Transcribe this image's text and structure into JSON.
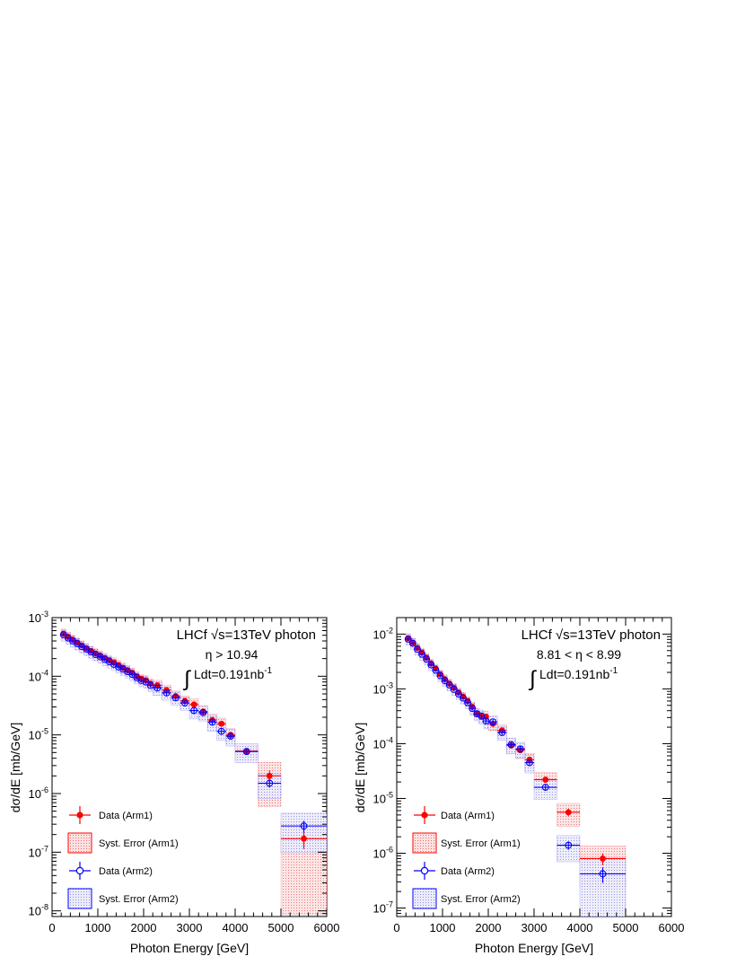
{
  "colors": {
    "arm1": "#ff0000",
    "arm2": "#0000ff",
    "arm1_fill": "#f7b0b0",
    "arm2_fill": "#c4c4f2"
  },
  "chart_data": [
    {
      "type": "scatter",
      "title_prefix": "LHCf ",
      "title_sqrt": "√",
      "title_suffix": "s=13TeV photon",
      "eta_text": "η > 10.94",
      "lumi_text": "Ldt=0.191nb",
      "lumi_sup": "-1",
      "xlabel": "Photon Energy [GeV]",
      "ylabel": "dσ/dE [mb/GeV]",
      "xlim": [
        0,
        6000
      ],
      "ylim": [
        8e-09,
        0.001
      ],
      "log_y": true,
      "x_ticks": [
        0,
        1000,
        2000,
        3000,
        4000,
        5000,
        6000
      ],
      "y_ticks": [
        {
          "v": 1e-08,
          "e": "-8"
        },
        {
          "v": 1e-07,
          "e": "-7"
        },
        {
          "v": 1e-06,
          "e": "-6"
        },
        {
          "v": 1e-05,
          "e": "-5"
        },
        {
          "v": 0.0001,
          "e": "-4"
        },
        {
          "v": 0.001,
          "e": "-3"
        }
      ],
      "legend": [
        "Data (Arm1)",
        "Syst. Error (Arm1)",
        "Data (Arm2)",
        "Syst. Error (Arm2)"
      ],
      "series": [
        {
          "name": "Data (Arm1)",
          "points": [
            [
              200,
              300,
              0.00053,
              0.2
            ],
            [
              300,
              400,
              0.00047,
              0.2
            ],
            [
              400,
              500,
              0.00042,
              0.2
            ],
            [
              500,
              600,
              0.000375,
              0.2
            ],
            [
              600,
              700,
              0.000335,
              0.2
            ],
            [
              700,
              800,
              0.0003,
              0.2
            ],
            [
              800,
              900,
              0.00027,
              0.2
            ],
            [
              900,
              1000,
              0.000245,
              0.2
            ],
            [
              1000,
              1100,
              0.000225,
              0.2
            ],
            [
              1100,
              1200,
              0.000205,
              0.2
            ],
            [
              1200,
              1300,
              0.000188,
              0.2
            ],
            [
              1300,
              1400,
              0.000172,
              0.2
            ],
            [
              1400,
              1500,
              0.000155,
              0.2
            ],
            [
              1500,
              1600,
              0.00014,
              0.2
            ],
            [
              1600,
              1700,
              0.000127,
              0.2
            ],
            [
              1700,
              1800,
              0.000115,
              0.2
            ],
            [
              1800,
              1900,
              0.0001,
              0.2
            ],
            [
              1900,
              2000,
              9e-05,
              0.2
            ],
            [
              2000,
              2100,
              8.5e-05,
              0.2
            ],
            [
              2100,
              2200,
              7.5e-05,
              0.2
            ],
            [
              2200,
              2400,
              7e-05,
              0.22
            ],
            [
              2400,
              2600,
              5.8e-05,
              0.22
            ],
            [
              2600,
              2800,
              4.6e-05,
              0.22
            ],
            [
              2800,
              3000,
              3.8e-05,
              0.22
            ],
            [
              3000,
              3200,
              3.3e-05,
              0.25
            ],
            [
              3200,
              3400,
              2.5e-05,
              0.25
            ],
            [
              3400,
              3600,
              1.8e-05,
              0.25
            ],
            [
              3600,
              3800,
              1.55e-05,
              0.25
            ],
            [
              3800,
              4000,
              1e-05,
              0.28
            ],
            [
              4000,
              4500,
              5.3e-06,
              0.3
            ],
            [
              4500,
              5000,
              2e-06,
              0.7
            ],
            [
              5000,
              6000,
              1.7e-07,
              0.95
            ]
          ]
        },
        {
          "name": "Data (Arm2)",
          "points": [
            [
              200,
              300,
              0.00051,
              0.22
            ],
            [
              300,
              400,
              0.00045,
              0.22
            ],
            [
              400,
              500,
              0.0004,
              0.22
            ],
            [
              500,
              600,
              0.00036,
              0.22
            ],
            [
              600,
              700,
              0.00032,
              0.22
            ],
            [
              700,
              800,
              0.00029,
              0.22
            ],
            [
              800,
              900,
              0.00026,
              0.22
            ],
            [
              900,
              1000,
              0.000235,
              0.22
            ],
            [
              1000,
              1100,
              0.000215,
              0.22
            ],
            [
              1100,
              1200,
              0.000195,
              0.22
            ],
            [
              1200,
              1300,
              0.000177,
              0.22
            ],
            [
              1300,
              1400,
              0.00016,
              0.22
            ],
            [
              1400,
              1500,
              0.000145,
              0.22
            ],
            [
              1500,
              1600,
              0.000132,
              0.22
            ],
            [
              1600,
              1700,
              0.00012,
              0.22
            ],
            [
              1700,
              1800,
              0.000108,
              0.22
            ],
            [
              1800,
              1900,
              9.5e-05,
              0.22
            ],
            [
              1900,
              2000,
              8.5e-05,
              0.22
            ],
            [
              2000,
              2100,
              8e-05,
              0.22
            ],
            [
              2100,
              2200,
              7e-05,
              0.22
            ],
            [
              2200,
              2400,
              6.3e-05,
              0.25
            ],
            [
              2400,
              2600,
              5.2e-05,
              0.25
            ],
            [
              2600,
              2800,
              4.3e-05,
              0.25
            ],
            [
              2800,
              3000,
              3.5e-05,
              0.25
            ],
            [
              3000,
              3200,
              2.6e-05,
              0.28
            ],
            [
              3200,
              3400,
              2.4e-05,
              0.28
            ],
            [
              3400,
              3600,
              1.65e-05,
              0.3
            ],
            [
              3600,
              3800,
              1.15e-05,
              0.3
            ],
            [
              3800,
              4000,
              9.5e-06,
              0.32
            ],
            [
              4000,
              4500,
              5.2e-06,
              0.35
            ],
            [
              4500,
              5000,
              1.5e-06,
              0.45
            ],
            [
              5000,
              6000,
              2.8e-07,
              0.65
            ]
          ]
        }
      ]
    },
    {
      "type": "scatter",
      "title_prefix": "LHCf ",
      "title_sqrt": "√",
      "title_suffix": "s=13TeV photon",
      "eta_text": "8.81 < η < 8.99",
      "lumi_text": "Ldt=0.191nb",
      "lumi_sup": "-1",
      "xlabel": "Photon Energy [GeV]",
      "ylabel": "dσ/dE [mb/GeV]",
      "xlim": [
        0,
        6000
      ],
      "ylim": [
        7e-08,
        0.02
      ],
      "log_y": true,
      "x_ticks": [
        0,
        1000,
        2000,
        3000,
        4000,
        5000,
        6000
      ],
      "y_ticks": [
        {
          "v": 1e-07,
          "e": "-7"
        },
        {
          "v": 1e-06,
          "e": "-6"
        },
        {
          "v": 1e-05,
          "e": "-5"
        },
        {
          "v": 0.0001,
          "e": "-4"
        },
        {
          "v": 0.001,
          "e": "-3"
        },
        {
          "v": 0.01,
          "e": "-2"
        }
      ],
      "legend": [
        "Data (Arm1)",
        "Syst. Error (Arm1)",
        "Data (Arm2)",
        "Syst. Error (Arm2)"
      ],
      "series": [
        {
          "name": "Data (Arm1)",
          "points": [
            [
              200,
              300,
              0.0084,
              0.2
            ],
            [
              300,
              400,
              0.007,
              0.2
            ],
            [
              400,
              500,
              0.0056,
              0.2
            ],
            [
              500,
              600,
              0.0046,
              0.2
            ],
            [
              600,
              700,
              0.0037,
              0.2
            ],
            [
              700,
              800,
              0.0029,
              0.2
            ],
            [
              800,
              900,
              0.00235,
              0.2
            ],
            [
              900,
              1000,
              0.00185,
              0.2
            ],
            [
              1000,
              1100,
              0.0015,
              0.2
            ],
            [
              1100,
              1200,
              0.00125,
              0.2
            ],
            [
              1200,
              1300,
              0.00105,
              0.2
            ],
            [
              1300,
              1400,
              0.00086,
              0.2
            ],
            [
              1400,
              1500,
              0.00072,
              0.2
            ],
            [
              1500,
              1600,
              0.0006,
              0.2
            ],
            [
              1600,
              1700,
              0.00047,
              0.22
            ],
            [
              1700,
              1800,
              0.00036,
              0.22
            ],
            [
              1800,
              1900,
              0.00031,
              0.25
            ],
            [
              1900,
              2000,
              0.00031,
              0.25
            ],
            [
              2000,
              2200,
              0.00023,
              0.25
            ],
            [
              2200,
              2400,
              0.000175,
              0.25
            ],
            [
              2400,
              2600,
              9.3e-05,
              0.3
            ],
            [
              2600,
              2800,
              7.6e-05,
              0.3
            ],
            [
              2800,
              3000,
              5.1e-05,
              0.3
            ],
            [
              3000,
              3500,
              2.2e-05,
              0.35
            ],
            [
              3500,
              4000,
              5.6e-06,
              0.45
            ],
            [
              4000,
              5000,
              8e-07,
              0.7
            ]
          ]
        },
        {
          "name": "Data (Arm2)",
          "points": [
            [
              200,
              300,
              0.0081,
              0.22
            ],
            [
              300,
              400,
              0.0068,
              0.22
            ],
            [
              400,
              500,
              0.0053,
              0.22
            ],
            [
              500,
              600,
              0.0043,
              0.22
            ],
            [
              600,
              700,
              0.0035,
              0.22
            ],
            [
              700,
              800,
              0.00275,
              0.22
            ],
            [
              800,
              900,
              0.0022,
              0.22
            ],
            [
              900,
              1000,
              0.00175,
              0.22
            ],
            [
              1000,
              1100,
              0.00142,
              0.22
            ],
            [
              1100,
              1200,
              0.00118,
              0.22
            ],
            [
              1200,
              1300,
              0.00098,
              0.22
            ],
            [
              1300,
              1400,
              0.00081,
              0.22
            ],
            [
              1400,
              1500,
              0.00068,
              0.22
            ],
            [
              1500,
              1600,
              0.00056,
              0.22
            ],
            [
              1600,
              1700,
              0.00044,
              0.25
            ],
            [
              1700,
              1800,
              0.00035,
              0.25
            ],
            [
              1800,
              1900,
              0.00032,
              0.28
            ],
            [
              1900,
              2000,
              0.00026,
              0.28
            ],
            [
              2000,
              2200,
              0.00025,
              0.28
            ],
            [
              2200,
              2400,
              0.00016,
              0.28
            ],
            [
              2400,
              2600,
              9.6e-05,
              0.32
            ],
            [
              2600,
              2800,
              8e-05,
              0.32
            ],
            [
              2800,
              3000,
              4.5e-05,
              0.35
            ],
            [
              3000,
              3500,
              1.6e-05,
              0.4
            ],
            [
              3500,
              4000,
              1.4e-06,
              0.5
            ],
            [
              4000,
              5000,
              4.2e-07,
              0.9
            ]
          ]
        }
      ]
    }
  ]
}
